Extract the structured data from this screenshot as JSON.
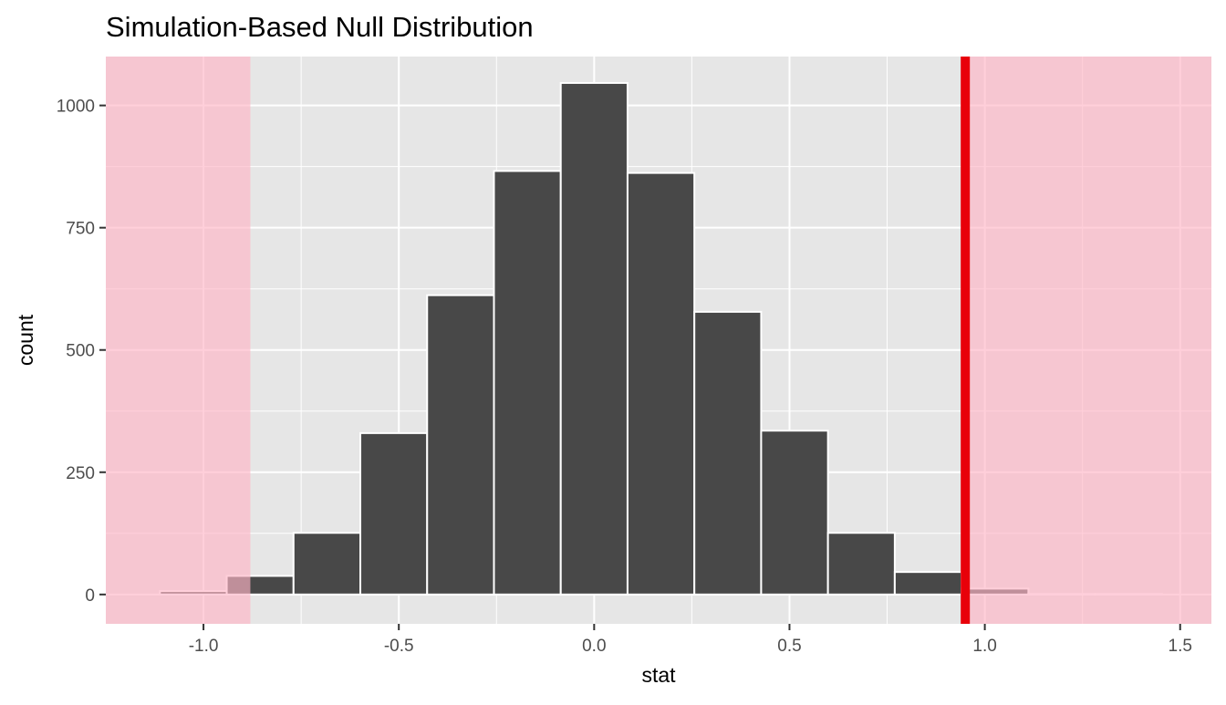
{
  "chart_data": {
    "type": "bar",
    "title": "Simulation-Based Null Distribution",
    "xlabel": "stat",
    "ylabel": "count",
    "bin_width": 0.171,
    "bins": [
      {
        "x": -1.026,
        "count": 7
      },
      {
        "x": -0.855,
        "count": 38
      },
      {
        "x": -0.684,
        "count": 126
      },
      {
        "x": -0.513,
        "count": 330
      },
      {
        "x": -0.342,
        "count": 612
      },
      {
        "x": -0.171,
        "count": 866
      },
      {
        "x": 0.0,
        "count": 1046
      },
      {
        "x": 0.171,
        "count": 862
      },
      {
        "x": 0.342,
        "count": 578
      },
      {
        "x": 0.513,
        "count": 335
      },
      {
        "x": 0.684,
        "count": 126
      },
      {
        "x": 0.855,
        "count": 46
      },
      {
        "x": 1.026,
        "count": 12
      },
      {
        "x": 1.197,
        "count": 1
      },
      {
        "x": 1.368,
        "count": 1
      }
    ],
    "observed_stat": 0.95,
    "shaded_regions": [
      {
        "from": -1.25,
        "to": -0.88
      },
      {
        "from": 0.95,
        "to": 1.58
      }
    ],
    "xlim": [
      -1.25,
      1.58
    ],
    "ylim": [
      -60,
      1100
    ],
    "x_ticks": [
      -1.0,
      -0.5,
      0.0,
      0.5,
      1.0,
      1.5
    ],
    "x_tick_labels": [
      "-1.0",
      "-0.5",
      "0.0",
      "0.5",
      "1.0",
      "1.5"
    ],
    "y_ticks": [
      0,
      250,
      500,
      750,
      1000
    ],
    "y_tick_labels": [
      "0",
      "250",
      "500",
      "750",
      "1000"
    ],
    "grid": true,
    "colors": {
      "panel": "#e6e6e6",
      "grid": "#ffffff",
      "bar_fill": "#484848",
      "bar_stroke": "#ffffff",
      "shade": "#ffb6c6",
      "observed_line": "#e8000a",
      "tick_text": "#4d4d4d"
    }
  }
}
